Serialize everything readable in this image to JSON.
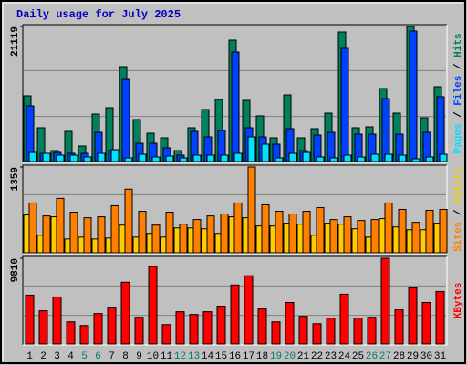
{
  "chart_data": [
    {
      "type": "bar",
      "title": "Daily usage for July 2025",
      "ylim": [
        0,
        21119
      ],
      "yticks": [
        21119
      ],
      "legend_separator": " / ",
      "series": [
        {
          "name": "Hits",
          "color": "#00805c",
          "values": [
            10274,
            5280,
            1712,
            4709,
            2426,
            7420,
            8419,
            14840,
            6564,
            4424,
            3710,
            1712,
            5280,
            8134,
            9703,
            18979,
            9561,
            7135,
            3710,
            10417,
            3710,
            5137,
            7563,
            20263,
            5280,
            5422,
            11416,
            7563,
            21119,
            6850,
            11701
          ]
        },
        {
          "name": "Files",
          "color": "#0040ff",
          "values": [
            8705,
            1284,
            1427,
            1284,
            1284,
            4566,
            1712,
            12843,
            2854,
            2854,
            2140,
            999,
            4709,
            3853,
            4852,
            17124,
            5280,
            3853,
            2711,
            5137,
            1712,
            4138,
            4566,
            17694,
            4281,
            4281,
            9846,
            4281,
            20406,
            4566,
            10132
          ]
        },
        {
          "name": "Pages",
          "color": "#00e0ff",
          "values": [
            1427,
            1284,
            999,
            999,
            713,
            1284,
            1855,
            571,
            1142,
            713,
            856,
            571,
            999,
            999,
            999,
            1284,
            3853,
            2711,
            571,
            1284,
            1427,
            713,
            571,
            999,
            713,
            1142,
            1142,
            999,
            428,
            713,
            1142
          ]
        }
      ]
    },
    {
      "type": "bar",
      "ylim": [
        0,
        1359
      ],
      "yticks": [
        1359
      ],
      "legend_separator": " / ",
      "series": [
        {
          "name": "Visits",
          "color": "#ffcc00",
          "values": [
            599,
            278,
            570,
            219,
            248,
            219,
            234,
            438,
            248,
            307,
            248,
            394,
            394,
            380,
            307,
            570,
            555,
            424,
            424,
            468,
            453,
            278,
            468,
            453,
            380,
            248,
            541,
            409,
            365,
            365,
            468
          ]
        },
        {
          "name": "Sites",
          "color": "#ff8000",
          "values": [
            789,
            584,
            862,
            643,
            555,
            570,
            745,
            1008,
            657,
            438,
            643,
            453,
            526,
            584,
            614,
            789,
            1359,
            760,
            657,
            614,
            657,
            716,
            526,
            570,
            511,
            526,
            789,
            687,
            482,
            672,
            687
          ]
        }
      ]
    },
    {
      "type": "bar",
      "ylim": [
        0,
        9810
      ],
      "yticks": [
        9810
      ],
      "legend_separator": " / ",
      "categories": [
        "1",
        "2",
        "3",
        "4",
        "5",
        "6",
        "7",
        "8",
        "9",
        "10",
        "11",
        "12",
        "13",
        "14",
        "15",
        "16",
        "17",
        "18",
        "19",
        "20",
        "21",
        "22",
        "23",
        "24",
        "25",
        "26",
        "27",
        "28",
        "29",
        "30",
        "31"
      ],
      "category_colors": [
        "#000000",
        "#000000",
        "#000000",
        "#000000",
        "#00805c",
        "#00805c",
        "#000000",
        "#000000",
        "#000000",
        "#000000",
        "#000000",
        "#00805c",
        "#00805c",
        "#000000",
        "#000000",
        "#000000",
        "#000000",
        "#000000",
        "#00805c",
        "#00805c",
        "#000000",
        "#000000",
        "#000000",
        "#000000",
        "#000000",
        "#00805c",
        "#00805c",
        "#000000",
        "#000000",
        "#000000",
        "#000000"
      ],
      "series": [
        {
          "name": "KBytes",
          "color": "#ff0000",
          "values": [
            5592,
            3798,
            5381,
            2532,
            2110,
            3482,
            4220,
            7069,
            3060,
            8862,
            2216,
            3693,
            3376,
            3693,
            4326,
            6752,
            7807,
            4009,
            2532,
            4748,
            3165,
            2321,
            2954,
            5697,
            2954,
            3060,
            9810,
            3904,
            6436,
            4748,
            6014
          ]
        }
      ]
    }
  ]
}
